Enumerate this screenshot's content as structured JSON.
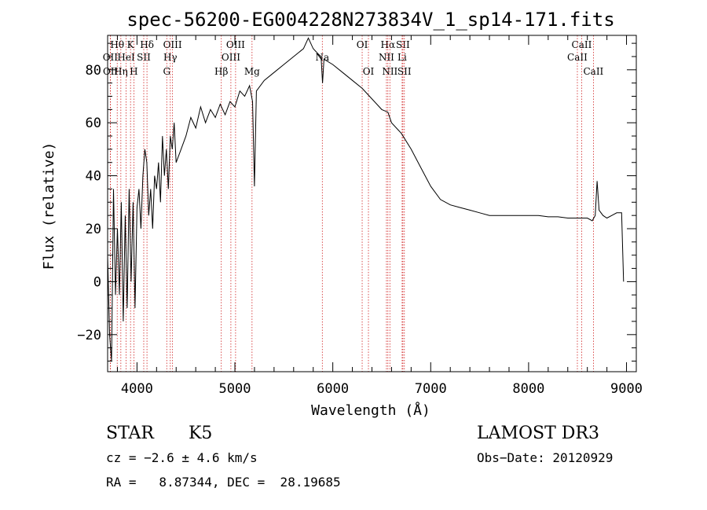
{
  "chart_data": {
    "type": "line",
    "title": "spec-56200-EG004228N273834V_1_sp14-171.fits",
    "xlabel": "Wavelength (Å)",
    "ylabel": "Flux (relative)",
    "xlim": [
      3700,
      9100
    ],
    "ylim": [
      -34,
      93
    ],
    "xticks": [
      4000,
      5000,
      6000,
      7000,
      8000,
      9000
    ],
    "yticks": [
      -20,
      0,
      20,
      40,
      60,
      80
    ],
    "series": [
      {
        "name": "flux",
        "points": [
          [
            3700,
            10
          ],
          [
            3720,
            -20
          ],
          [
            3740,
            -30
          ],
          [
            3760,
            35
          ],
          [
            3780,
            -5
          ],
          [
            3800,
            20
          ],
          [
            3820,
            -5
          ],
          [
            3840,
            30
          ],
          [
            3860,
            -15
          ],
          [
            3880,
            25
          ],
          [
            3900,
            -10
          ],
          [
            3920,
            35
          ],
          [
            3940,
            0
          ],
          [
            3960,
            30
          ],
          [
            3980,
            -10
          ],
          [
            4000,
            28
          ],
          [
            4020,
            35
          ],
          [
            4040,
            20
          ],
          [
            4060,
            40
          ],
          [
            4080,
            50
          ],
          [
            4100,
            45
          ],
          [
            4120,
            25
          ],
          [
            4140,
            35
          ],
          [
            4160,
            20
          ],
          [
            4180,
            40
          ],
          [
            4200,
            35
          ],
          [
            4220,
            45
          ],
          [
            4240,
            30
          ],
          [
            4260,
            55
          ],
          [
            4280,
            40
          ],
          [
            4300,
            50
          ],
          [
            4320,
            35
          ],
          [
            4340,
            55
          ],
          [
            4360,
            50
          ],
          [
            4380,
            60
          ],
          [
            4400,
            45
          ],
          [
            4450,
            50
          ],
          [
            4500,
            55
          ],
          [
            4550,
            62
          ],
          [
            4600,
            58
          ],
          [
            4650,
            66
          ],
          [
            4700,
            60
          ],
          [
            4750,
            65
          ],
          [
            4800,
            62
          ],
          [
            4850,
            67
          ],
          [
            4900,
            63
          ],
          [
            4950,
            68
          ],
          [
            5000,
            66
          ],
          [
            5050,
            72
          ],
          [
            5100,
            70
          ],
          [
            5150,
            74
          ],
          [
            5180,
            68
          ],
          [
            5200,
            36
          ],
          [
            5220,
            72
          ],
          [
            5300,
            76
          ],
          [
            5400,
            79
          ],
          [
            5500,
            82
          ],
          [
            5600,
            85
          ],
          [
            5700,
            88
          ],
          [
            5750,
            92
          ],
          [
            5800,
            88
          ],
          [
            5850,
            86
          ],
          [
            5880,
            85
          ],
          [
            5895,
            75
          ],
          [
            5910,
            84
          ],
          [
            6000,
            82
          ],
          [
            6100,
            79
          ],
          [
            6200,
            76
          ],
          [
            6300,
            73
          ],
          [
            6400,
            69
          ],
          [
            6500,
            65
          ],
          [
            6563,
            64
          ],
          [
            6600,
            60
          ],
          [
            6700,
            56
          ],
          [
            6800,
            50
          ],
          [
            6900,
            43
          ],
          [
            7000,
            36
          ],
          [
            7100,
            31
          ],
          [
            7200,
            29
          ],
          [
            7300,
            28
          ],
          [
            7400,
            27
          ],
          [
            7500,
            26
          ],
          [
            7600,
            25
          ],
          [
            7700,
            25
          ],
          [
            7800,
            25
          ],
          [
            7900,
            25
          ],
          [
            8000,
            25
          ],
          [
            8100,
            25
          ],
          [
            8200,
            24.5
          ],
          [
            8300,
            24.5
          ],
          [
            8400,
            24
          ],
          [
            8500,
            24
          ],
          [
            8600,
            24
          ],
          [
            8650,
            23
          ],
          [
            8680,
            25
          ],
          [
            8700,
            38
          ],
          [
            8720,
            27
          ],
          [
            8760,
            25
          ],
          [
            8800,
            24
          ],
          [
            8850,
            25
          ],
          [
            8900,
            26
          ],
          [
            8950,
            26
          ],
          [
            8970,
            0
          ]
        ]
      }
    ],
    "line_markers": [
      {
        "label": "Hθ",
        "wavelength": 3798,
        "row": 0
      },
      {
        "label": "OII",
        "wavelength": 3727,
        "row": 1
      },
      {
        "label": "OII",
        "wavelength": 3729,
        "row": 2
      },
      {
        "label": "HeI",
        "wavelength": 3889,
        "row": 1
      },
      {
        "label": "Hη",
        "wavelength": 3835,
        "row": 2
      },
      {
        "label": "K",
        "wavelength": 3934,
        "row": 0
      },
      {
        "label": "SII",
        "wavelength": 4069,
        "row": 1
      },
      {
        "label": "H",
        "wavelength": 3968,
        "row": 2
      },
      {
        "label": "Hδ",
        "wavelength": 4102,
        "row": 0
      },
      {
        "label": "OIII",
        "wavelength": 4363,
        "row": 0
      },
      {
        "label": "Hγ",
        "wavelength": 4340,
        "row": 1
      },
      {
        "label": "G",
        "wavelength": 4304,
        "row": 2
      },
      {
        "label": "Hβ",
        "wavelength": 4861,
        "row": 2
      },
      {
        "label": "OIII",
        "wavelength": 5007,
        "row": 0
      },
      {
        "label": "OIII",
        "wavelength": 4959,
        "row": 1
      },
      {
        "label": "Mg",
        "wavelength": 5175,
        "row": 2
      },
      {
        "label": "Na",
        "wavelength": 5893,
        "row": 1
      },
      {
        "label": "OI",
        "wavelength": 6300,
        "row": 0
      },
      {
        "label": "OI",
        "wavelength": 6364,
        "row": 2
      },
      {
        "label": "Hα",
        "wavelength": 6563,
        "row": 0
      },
      {
        "label": "NII",
        "wavelength": 6548,
        "row": 1
      },
      {
        "label": "NII",
        "wavelength": 6583,
        "row": 2
      },
      {
        "label": "SII",
        "wavelength": 6716,
        "row": 0
      },
      {
        "label": "Li",
        "wavelength": 6708,
        "row": 1
      },
      {
        "label": "SII",
        "wavelength": 6731,
        "row": 2
      },
      {
        "label": "CaII",
        "wavelength": 8542,
        "row": 0
      },
      {
        "label": "CaII",
        "wavelength": 8498,
        "row": 1
      },
      {
        "label": "CaII",
        "wavelength": 8662,
        "row": 2
      }
    ]
  },
  "info": {
    "object_class": "STAR",
    "subclass": "K5",
    "survey": "LAMOST DR3",
    "cz": "cz = −2.6 ± 4.6 km/s",
    "obs_date": "Obs−Date: 20120929",
    "radec": "RA =   8.87344, DEC =  28.19685"
  },
  "colors": {
    "axis": "#000000",
    "spectrum": "#000000",
    "marker": "#d02020"
  }
}
